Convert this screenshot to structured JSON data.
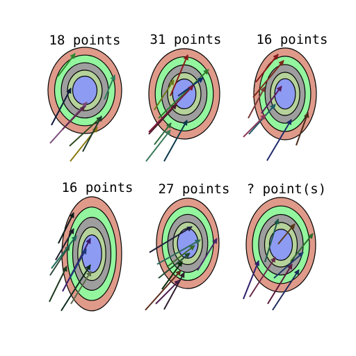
{
  "ring_colors": [
    "#df9a8a",
    "#93f59e",
    "#9e9e9e",
    "#b5d29b",
    "#8e9bf2"
  ],
  "panels": [
    {
      "score_label": "18 points",
      "arrows": [
        {
          "color": "#2e8b2e"
        },
        {
          "color": "#0b1a3a"
        },
        {
          "color": "#2e7d5b"
        },
        {
          "color": "#7a4b7a"
        },
        {
          "color": "#5b2a4a"
        },
        {
          "color": "#2e4b1e"
        },
        {
          "color": "#8a7a10"
        },
        {
          "color": "#1e3b2e"
        }
      ]
    },
    {
      "score_label": "31 points",
      "arrows": [
        {
          "color": "#8a1a1a"
        },
        {
          "color": "#6b7a1a"
        },
        {
          "color": "#2e7a2e"
        },
        {
          "color": "#0b2a6a"
        },
        {
          "color": "#7a1a3a"
        },
        {
          "color": "#4b1a2a"
        },
        {
          "color": "#2e6b3a"
        },
        {
          "color": "#3a7a5a"
        },
        {
          "color": "#0b3a4a"
        }
      ]
    },
    {
      "score_label": "16 points",
      "arrows": [
        {
          "color": "#8a1a1a"
        },
        {
          "color": "#7a2a1a"
        },
        {
          "color": "#5a1a5a"
        },
        {
          "color": "#7a3a3a"
        },
        {
          "color": "#1e5a6a"
        },
        {
          "color": "#8a3a5a"
        },
        {
          "color": "#1e2a6a"
        },
        {
          "color": "#4a2a1a"
        }
      ]
    },
    {
      "score_label": "16 points",
      "arrows": [
        {
          "color": "#0b1a1a"
        },
        {
          "color": "#1e1e2e"
        },
        {
          "color": "#2e4a3a"
        },
        {
          "color": "#1e6a5a"
        },
        {
          "color": "#3a1a6a"
        },
        {
          "color": "#1e3a1e"
        },
        {
          "color": "#0b2a1a"
        },
        {
          "color": "#5a6a4a"
        },
        {
          "color": "#1e3a7a"
        }
      ]
    },
    {
      "score_label": "27 points",
      "arrows": [
        {
          "color": "#1e1e3a"
        },
        {
          "color": "#2e6a5a"
        },
        {
          "color": "#1e4a2e"
        },
        {
          "color": "#3a6a2a"
        },
        {
          "color": "#0b2a0b"
        },
        {
          "color": "#5a2a1a"
        },
        {
          "color": "#4a1a4a"
        },
        {
          "color": "#2e1e2e"
        },
        {
          "color": "#4a2a6a"
        }
      ]
    },
    {
      "score_label": "? point(s)",
      "arrows": [
        {
          "color": "#1e5a4a"
        },
        {
          "color": "#5a3a1a"
        },
        {
          "color": "#2e6a2e"
        },
        {
          "color": "#1e3a6a"
        },
        {
          "color": "#1e2a5a"
        },
        {
          "color": "#6a2a4a"
        },
        {
          "color": "#5a1a3a"
        },
        {
          "color": "#2e1e6a"
        }
      ]
    }
  ]
}
